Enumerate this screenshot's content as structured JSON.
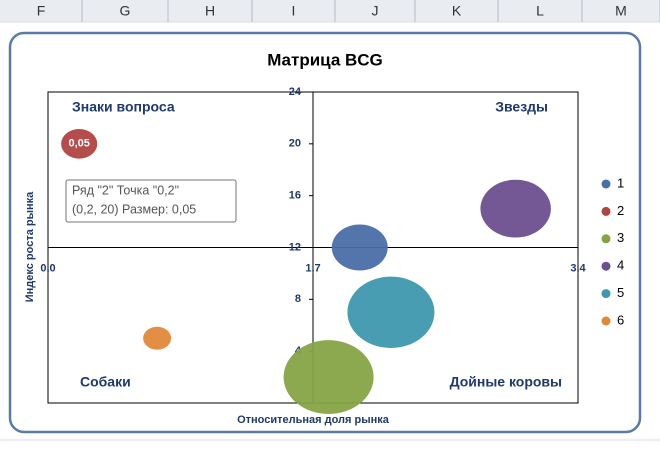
{
  "columns": [
    "F",
    "G",
    "H",
    "I",
    "J",
    "K",
    "L",
    "M"
  ],
  "chart_data": {
    "type": "bubble",
    "title": "Матрица BCG",
    "x_label": "Относительная доля рынка",
    "y_label": "Индекс роста рынка",
    "xlim": [
      0,
      3.4
    ],
    "ylim": [
      0,
      24
    ],
    "xticks": [
      {
        "value": 0,
        "label": "0,0"
      },
      {
        "value": 1.7,
        "label": "1,7"
      },
      {
        "value": 3.4,
        "label": "3,4"
      }
    ],
    "yticks": [
      4,
      8,
      12,
      16,
      20,
      24
    ],
    "x_axis_at": 12,
    "y_axis_at": 1.7,
    "quadrants": [
      "Знаки вопроса",
      "Звезды",
      "Собаки",
      "Дойные коровы"
    ],
    "legend": "right",
    "series": [
      {
        "name": "1",
        "color": "#4a6ea8",
        "x": [
          2.0
        ],
        "values": [
          12
        ],
        "sizes": [
          0.12
        ]
      },
      {
        "name": "2",
        "color": "#b04442",
        "x": [
          0.2
        ],
        "values": [
          20
        ],
        "sizes": [
          0.05
        ],
        "value_labels": [
          "0,05"
        ]
      },
      {
        "name": "3",
        "color": "#86a446",
        "x": [
          1.8
        ],
        "values": [
          2
        ],
        "sizes": [
          0.31
        ]
      },
      {
        "name": "4",
        "color": "#6d4f8f",
        "x": [
          3.0
        ],
        "values": [
          15
        ],
        "sizes": [
          0.19
        ]
      },
      {
        "name": "5",
        "color": "#3f98ae",
        "x": [
          2.2
        ],
        "values": [
          7
        ],
        "sizes": [
          0.29
        ]
      },
      {
        "name": "6",
        "color": "#e0883a",
        "x": [
          0.7
        ],
        "values": [
          5
        ],
        "sizes": [
          0.03
        ]
      }
    ],
    "tooltip": [
      "Ряд \"2\" Точка \"0,2\"",
      "(0,2, 20) Размер: 0,05"
    ]
  }
}
